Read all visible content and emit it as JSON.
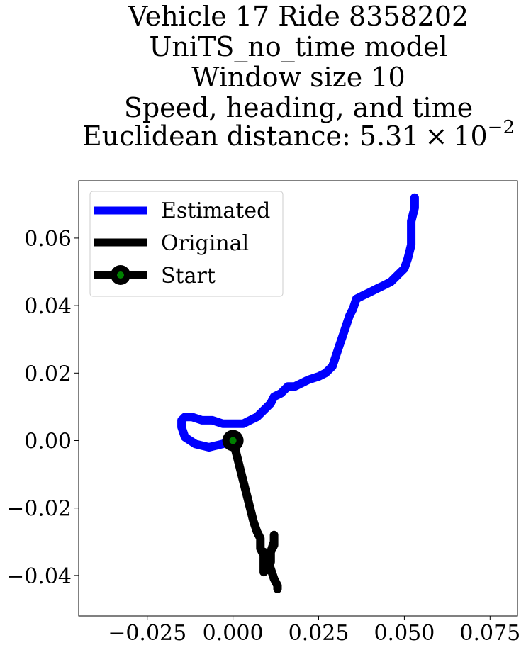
{
  "chart_data": {
    "type": "line",
    "title_lines": [
      "Vehicle 17 Ride 8358202",
      "UniTS_no_time model",
      "Window size 10",
      "Speed, heading, and time"
    ],
    "title_distance": {
      "prefix": "Euclidean distance: 5.31",
      "times": "×",
      "base": "10",
      "exponent": "−2"
    },
    "xlim": [
      -0.045,
      0.083
    ],
    "ylim": [
      -0.052,
      0.077
    ],
    "xticks": [
      -0.025,
      0.0,
      0.025,
      0.05,
      0.075
    ],
    "xtick_labels": [
      "−0.025",
      "0.000",
      "0.025",
      "0.050",
      "0.075"
    ],
    "yticks": [
      -0.04,
      -0.02,
      0.0,
      0.02,
      0.04,
      0.06
    ],
    "ytick_labels": [
      "−0.04",
      "−0.02",
      "0.00",
      "0.02",
      "0.04",
      "0.06"
    ],
    "legend_position": "upper-left",
    "series": [
      {
        "name": "Estimated",
        "color": "#0000ff",
        "x": [
          0.0,
          -0.003,
          -0.007,
          -0.011,
          -0.014,
          -0.015,
          -0.015,
          -0.014,
          -0.012,
          -0.009,
          -0.006,
          -0.003,
          0.0,
          0.003,
          0.005,
          0.007,
          0.009,
          0.011,
          0.012,
          0.014,
          0.016,
          0.018,
          0.02,
          0.022,
          0.025,
          0.027,
          0.029,
          0.03,
          0.031,
          0.032,
          0.033,
          0.034,
          0.035,
          0.036,
          0.038,
          0.04,
          0.042,
          0.044,
          0.046,
          0.048,
          0.05,
          0.051,
          0.052,
          0.052,
          0.052,
          0.053,
          0.053
        ],
        "y": [
          0.0,
          -0.001,
          -0.002,
          -0.001,
          0.001,
          0.004,
          0.006,
          0.007,
          0.007,
          0.006,
          0.006,
          0.005,
          0.005,
          0.005,
          0.006,
          0.007,
          0.009,
          0.011,
          0.013,
          0.014,
          0.016,
          0.016,
          0.017,
          0.018,
          0.019,
          0.02,
          0.022,
          0.025,
          0.028,
          0.031,
          0.034,
          0.037,
          0.039,
          0.042,
          0.043,
          0.044,
          0.045,
          0.046,
          0.047,
          0.049,
          0.051,
          0.054,
          0.058,
          0.061,
          0.065,
          0.069,
          0.072
        ]
      },
      {
        "name": "Original",
        "color": "#000000",
        "x": [
          0.0,
          0.001,
          0.002,
          0.003,
          0.004,
          0.005,
          0.006,
          0.007,
          0.008,
          0.008,
          0.009,
          0.011,
          0.012,
          0.012,
          0.012,
          0.011,
          0.011,
          0.01,
          0.009,
          0.009,
          0.009,
          0.01,
          0.011,
          0.012,
          0.013,
          0.013
        ],
        "y": [
          0.0,
          -0.004,
          -0.008,
          -0.012,
          -0.016,
          -0.02,
          -0.024,
          -0.027,
          -0.029,
          -0.032,
          -0.034,
          -0.033,
          -0.031,
          -0.028,
          -0.03,
          -0.033,
          -0.036,
          -0.038,
          -0.039,
          -0.036,
          -0.033,
          -0.035,
          -0.038,
          -0.041,
          -0.043,
          -0.044
        ]
      }
    ],
    "start_marker": {
      "name": "Start",
      "x": 0.0,
      "y": 0.0,
      "edge_color": "#000000",
      "face_color": "#008000"
    }
  }
}
